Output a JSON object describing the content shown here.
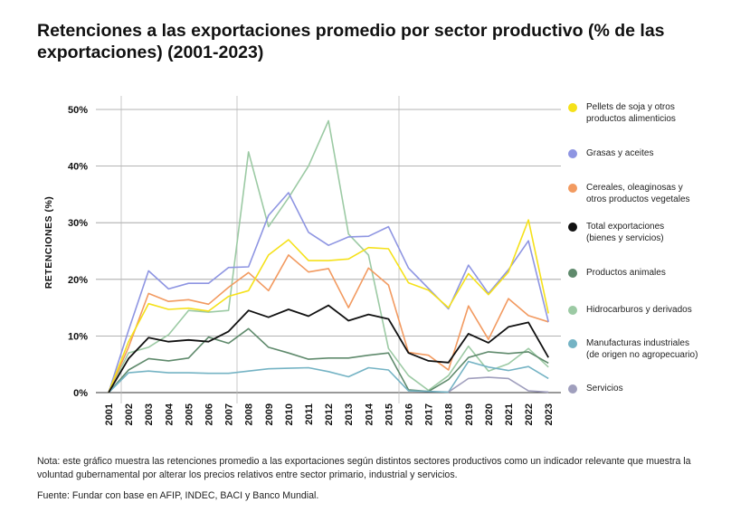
{
  "title": "Retenciones a las exportaciones promedio por sector productivo (%  de las exportaciones) (2001-2023)",
  "chart_data": {
    "type": "line",
    "ylabel": "RETENCIONES (%)",
    "xlabel": "",
    "ylim": [
      0,
      50
    ],
    "y_ticks": [
      0,
      10,
      20,
      30,
      40,
      50
    ],
    "y_tick_labels": [
      "0%",
      "10%",
      "20%",
      "30%",
      "40%",
      "50%"
    ],
    "x": [
      "2001",
      "2002",
      "2003",
      "2004",
      "2005",
      "2006",
      "2007",
      "2008",
      "2009",
      "2010",
      "2011",
      "2012",
      "2013",
      "2014",
      "2015",
      "2016",
      "2017",
      "2018",
      "2019",
      "2020",
      "2021",
      "2022",
      "2023"
    ],
    "legend_position": "right",
    "series": [
      {
        "name": "Pellets de soja y otros productos alimenticios",
        "color": "#f5e11a",
        "values": [
          0,
          9,
          15.7,
          14.7,
          14.9,
          14.4,
          17.0,
          18.0,
          24.3,
          27.0,
          23.3,
          23.3,
          23.6,
          25.6,
          25.4,
          19.4,
          18.1,
          15.0,
          21.0,
          17.3,
          21.3,
          30.5,
          14.0
        ]
      },
      {
        "name": "Grasas y aceites",
        "color": "#8e95e2",
        "values": [
          0,
          11,
          21.5,
          18.3,
          19.3,
          19.3,
          22.1,
          22.2,
          31.3,
          35.3,
          28.3,
          26.0,
          27.5,
          27.6,
          29.3,
          22.0,
          18.4,
          14.8,
          22.5,
          17.5,
          21.7,
          26.8,
          12.5
        ]
      },
      {
        "name": "Cereales, oleaginosas y otros productos vegetales",
        "color": "#f29a60",
        "values": [
          0,
          8,
          17.5,
          16.1,
          16.4,
          15.6,
          18.6,
          21.2,
          18.0,
          24.3,
          21.3,
          21.9,
          15.0,
          22.0,
          19.0,
          7.1,
          6.6,
          4.0,
          15.3,
          9.4,
          16.6,
          13.6,
          12.5
        ]
      },
      {
        "name": "Total exportaciones (bienes y servicios)",
        "color": "#111111",
        "values": [
          0,
          6,
          9.7,
          9.0,
          9.3,
          9.0,
          10.8,
          14.5,
          13.3,
          14.7,
          13.5,
          15.4,
          12.7,
          13.8,
          13.0,
          7.0,
          5.6,
          5.3,
          10.4,
          8.8,
          11.6,
          12.4,
          6.2
        ]
      },
      {
        "name": "Productos animales",
        "color": "#5f8a6c",
        "values": [
          0,
          4,
          6.0,
          5.6,
          6.1,
          9.8,
          8.7,
          11.3,
          8.0,
          7.0,
          5.9,
          6.1,
          6.1,
          6.6,
          7.0,
          0.5,
          0.2,
          2.3,
          6.2,
          7.2,
          6.9,
          7.2,
          5.2
        ]
      },
      {
        "name": "Hidrocarburos y derivados",
        "color": "#9ccaa4",
        "values": [
          0,
          7,
          8.0,
          10.2,
          14.5,
          14.2,
          14.5,
          42.5,
          29.3,
          34.4,
          40.0,
          48.0,
          28.0,
          24.3,
          7.8,
          3.0,
          0.4,
          3.0,
          8.2,
          3.8,
          5.1,
          7.8,
          4.5
        ]
      },
      {
        "name": "Manufacturas industriales (de origen no agropecuario)",
        "color": "#74b3c4",
        "values": [
          0,
          3.5,
          3.8,
          3.5,
          3.5,
          3.4,
          3.4,
          3.8,
          4.2,
          4.3,
          4.4,
          3.7,
          2.8,
          4.4,
          4.0,
          0.3,
          0.2,
          0.1,
          5.5,
          4.5,
          3.9,
          4.6,
          2.5
        ]
      },
      {
        "name": "Servicios",
        "color": "#a09fbd",
        "values": [
          null,
          null,
          null,
          null,
          null,
          null,
          null,
          null,
          null,
          null,
          null,
          null,
          null,
          null,
          null,
          null,
          null,
          0.1,
          2.5,
          2.7,
          2.5,
          0.3,
          0.1
        ]
      }
    ]
  },
  "legend_labels": [
    "Pellets de soja y otros\nproductos alimenticios",
    "Grasas y aceites",
    "Cereales, oleaginosas y\notros productos vegetales",
    "Total exportaciones\n(bienes y servicios)",
    "Productos animales",
    "Hidrocarburos y derivados",
    "Manufacturas industriales\n(de origen no agropecuario)",
    "Servicios"
  ],
  "note": "Nota: este gráfico muestra las retenciones promedio a las exportaciones según distintos sectores productivos como un indicador relevante que muestra la voluntad gubernamental por alterar los precios relativos entre sector primario, industrial y servicios.",
  "source": "Fuente: Fundar con base en AFIP, INDEC, BACI y Banco Mundial."
}
